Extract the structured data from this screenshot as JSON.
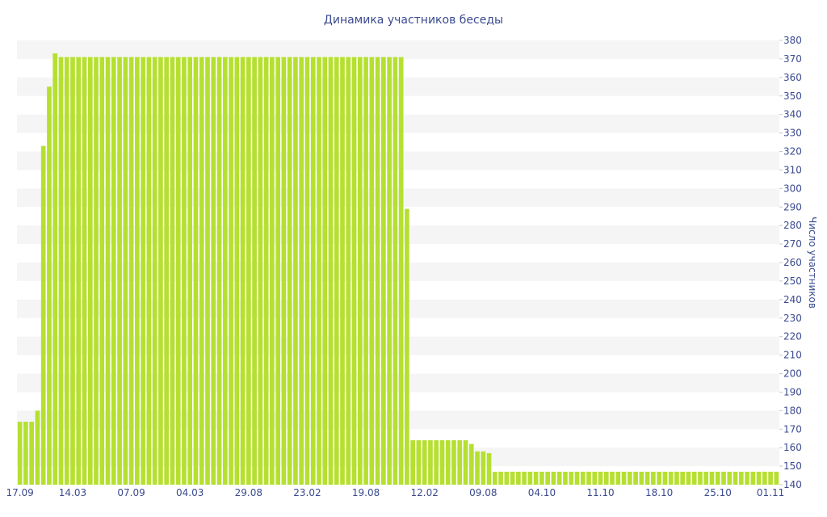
{
  "chart_data": {
    "type": "bar",
    "title": "Динамика участников беседы",
    "xlabel": "",
    "ylabel": "Число участников",
    "ylim": [
      140,
      380
    ],
    "y_ticks": [
      140,
      150,
      160,
      170,
      180,
      190,
      200,
      210,
      220,
      230,
      240,
      250,
      260,
      270,
      280,
      290,
      300,
      310,
      320,
      330,
      340,
      350,
      360,
      370,
      380
    ],
    "y_axis_side": "right",
    "grid": "alternating horizontal bands",
    "legend": "none",
    "bar_color": "#b5e030",
    "band_color": "#f5f5f5",
    "x_tick_labels": [
      "17.09",
      "14.03",
      "07.09",
      "04.03",
      "29.08",
      "23.02",
      "19.08",
      "12.02",
      "09.08",
      "04.10",
      "11.10",
      "18.10",
      "25.10",
      "01.11"
    ],
    "x_tick_label_bar_index": [
      0,
      9,
      19,
      29,
      39,
      49,
      59,
      69,
      79,
      89,
      99,
      109,
      119,
      128
    ],
    "values": [
      174,
      174,
      174,
      180,
      323,
      355,
      373,
      371,
      371,
      371,
      371,
      371,
      371,
      371,
      371,
      371,
      371,
      371,
      371,
      371,
      371,
      371,
      371,
      371,
      371,
      371,
      371,
      371,
      371,
      371,
      371,
      371,
      371,
      371,
      371,
      371,
      371,
      371,
      371,
      371,
      371,
      371,
      371,
      371,
      371,
      371,
      371,
      371,
      371,
      371,
      371,
      371,
      371,
      371,
      371,
      371,
      371,
      371,
      371,
      371,
      371,
      371,
      371,
      371,
      371,
      371,
      289,
      164,
      164,
      164,
      164,
      164,
      164,
      164,
      164,
      164,
      164,
      162,
      158,
      158,
      157,
      147,
      147,
      147,
      147,
      147,
      147,
      147,
      147,
      147,
      147,
      147,
      147,
      147,
      147,
      147,
      147,
      147,
      147,
      147,
      147,
      147,
      147,
      147,
      147,
      147,
      147,
      147,
      147,
      147,
      147,
      147,
      147,
      147,
      147,
      147,
      147,
      147,
      147,
      147,
      147,
      147,
      147,
      147,
      147,
      147,
      147,
      147,
      147,
      147
    ]
  }
}
